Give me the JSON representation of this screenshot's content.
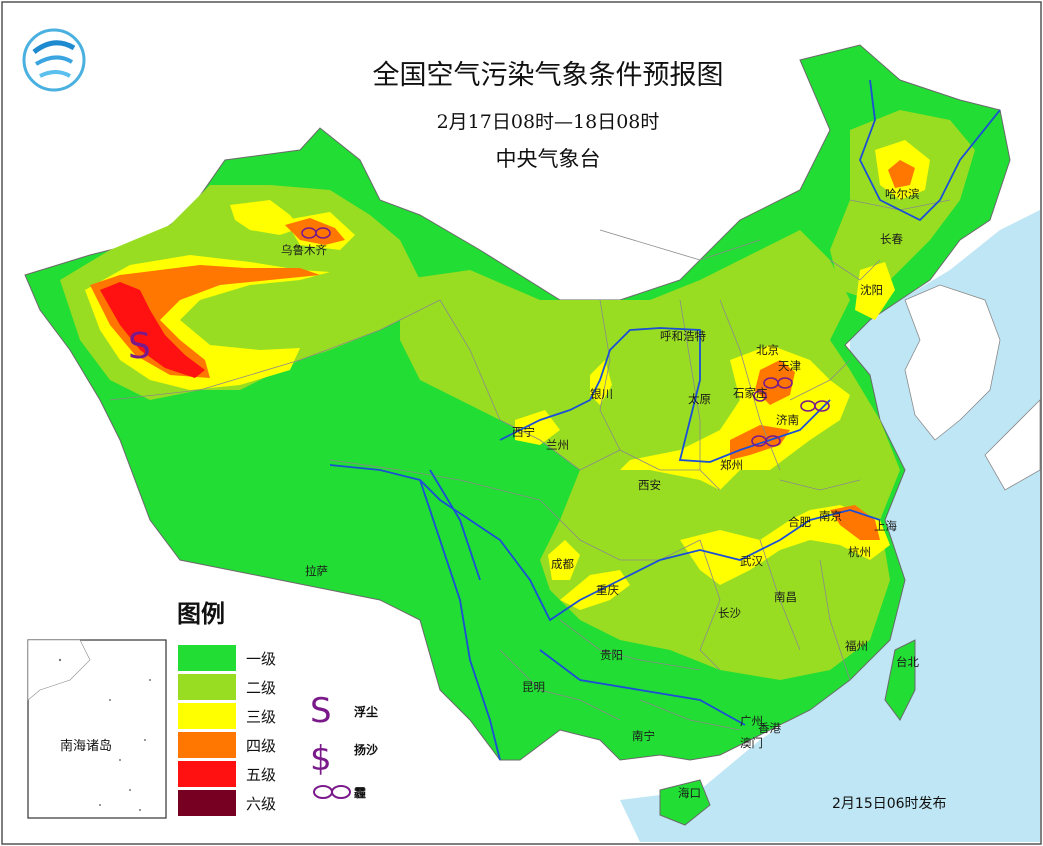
{
  "title": "全国空气污染气象条件预报图",
  "valid_period": "2月17日08时—18日08时",
  "agency": "中央气象台",
  "issued": "2月15日06时发布",
  "legend": {
    "title": "图例",
    "levels": [
      {
        "label": "一级",
        "color": "#22dd33"
      },
      {
        "label": "二级",
        "color": "#99dd22"
      },
      {
        "label": "三级",
        "color": "#ffff00"
      },
      {
        "label": "四级",
        "color": "#ff7700"
      },
      {
        "label": "五级",
        "color": "#ff1111"
      },
      {
        "label": "六级",
        "color": "#770022"
      }
    ],
    "symbols": [
      {
        "glyph": "S",
        "label": "浮尘"
      },
      {
        "glyph": "$",
        "label": "扬沙"
      },
      {
        "glyph": "∞",
        "label": "霾"
      }
    ]
  },
  "inset_label": "南海诸岛",
  "cities": {
    "urumqi": "乌鲁木齐",
    "harbin": "哈尔滨",
    "changchun": "长春",
    "shenyang": "沈阳",
    "hohhot": "呼和浩特",
    "beijing": "北京",
    "tianjin": "天津",
    "shijiazhuang": "石家庄",
    "taiyuan": "太原",
    "jinan": "济南",
    "yinchuan": "银川",
    "xining": "西宁",
    "lanzhou": "兰州",
    "zhengzhou": "郑州",
    "xian": "西安",
    "hefei": "合肥",
    "nanjing": "南京",
    "shanghai": "上海",
    "hangzhou": "杭州",
    "chengdu": "成都",
    "chongqing": "重庆",
    "wuhan": "武汉",
    "lhasa": "拉萨",
    "changsha": "长沙",
    "nanchang": "南昌",
    "fuzhou": "福州",
    "taipei": "台北",
    "guiyang": "贵阳",
    "kunming": "昆明",
    "nanning": "南宁",
    "guangzhou": "广州",
    "hongkong": "香港",
    "macau": "澳门",
    "haikou": "海口"
  },
  "colors": {
    "sea": "#bfe6f5",
    "river": "#1b4fd6",
    "border": "#8a8a8a",
    "symbol": "#7a1a8a"
  }
}
